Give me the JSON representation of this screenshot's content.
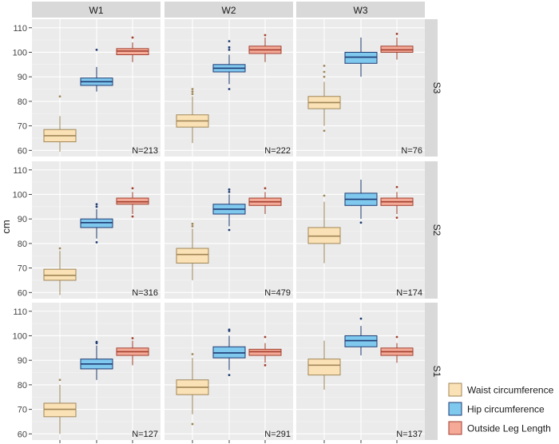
{
  "chart_data": {
    "type": "boxplot",
    "ylabel": "cm",
    "yticks": [
      60,
      70,
      80,
      90,
      100,
      110
    ],
    "ylim": [
      57.5,
      113.5
    ],
    "columns": [
      "W1",
      "W2",
      "W3"
    ],
    "rows": [
      "S3",
      "S2",
      "S1"
    ],
    "legend": {
      "placement": "bottom-right",
      "entries": [
        {
          "label": "Waist circumference",
          "fill": "#fbe2b6",
          "stroke": "#a08657"
        },
        {
          "label": "Hip circumference",
          "fill": "#7fc8ee",
          "stroke": "#1f3b73"
        },
        {
          "label": "Outside Leg Length",
          "fill": "#f4aa97",
          "stroke": "#a23f30"
        }
      ]
    },
    "panels": [
      {
        "row": "S3",
        "col": "W1",
        "n_label": "N=213",
        "boxes": [
          {
            "series": "Waist circumference",
            "whisker_low": 59.5,
            "q1": 63.5,
            "median": 66,
            "q3": 68.5,
            "whisker_high": 74,
            "outliers": [
              82
            ]
          },
          {
            "series": "Hip circumference",
            "whisker_low": 84,
            "q1": 86.5,
            "median": 88,
            "q3": 89.5,
            "whisker_high": 94,
            "outliers": [
              101
            ]
          },
          {
            "series": "Outside Leg Length",
            "whisker_low": 96,
            "q1": 99,
            "median": 100.5,
            "q3": 101.5,
            "whisker_high": 104,
            "outliers": [
              106
            ]
          }
        ]
      },
      {
        "row": "S3",
        "col": "W2",
        "n_label": "N=222",
        "boxes": [
          {
            "series": "Waist circumference",
            "whisker_low": 63,
            "q1": 69.5,
            "median": 72,
            "q3": 74.5,
            "whisker_high": 82,
            "outliers": [
              83,
              84,
              85
            ]
          },
          {
            "series": "Hip circumference",
            "whisker_low": 87,
            "q1": 92,
            "median": 93.5,
            "q3": 95,
            "whisker_high": 99,
            "outliers": [
              85,
              101,
              102,
              104.5
            ]
          },
          {
            "series": "Outside Leg Length",
            "whisker_low": 96,
            "q1": 99.5,
            "median": 101,
            "q3": 102.5,
            "whisker_high": 106,
            "outliers": [
              107
            ]
          }
        ]
      },
      {
        "row": "S3",
        "col": "W3",
        "n_label": "N=76",
        "boxes": [
          {
            "series": "Waist circumference",
            "whisker_low": 70,
            "q1": 77,
            "median": 79.5,
            "q3": 82,
            "whisker_high": 88,
            "outliers": [
              68,
              90,
              92,
              94.5
            ]
          },
          {
            "series": "Hip circumference",
            "whisker_low": 90,
            "q1": 95.5,
            "median": 98,
            "q3": 100,
            "whisker_high": 106,
            "outliers": []
          },
          {
            "series": "Outside Leg Length",
            "whisker_low": 97,
            "q1": 100,
            "median": 101,
            "q3": 102.5,
            "whisker_high": 106,
            "outliers": [
              107.5
            ]
          }
        ]
      },
      {
        "row": "S2",
        "col": "W1",
        "n_label": "N=316",
        "boxes": [
          {
            "series": "Waist circumference",
            "whisker_low": 59,
            "q1": 65,
            "median": 67,
            "q3": 69.5,
            "whisker_high": 77,
            "outliers": [
              78
            ]
          },
          {
            "series": "Hip circumference",
            "whisker_low": 82,
            "q1": 86.5,
            "median": 88.5,
            "q3": 90,
            "whisker_high": 94,
            "outliers": [
              80.5,
              95,
              96
            ]
          },
          {
            "series": "Outside Leg Length",
            "whisker_low": 92,
            "q1": 96,
            "median": 97,
            "q3": 98.5,
            "whisker_high": 101,
            "outliers": [
              91,
              102.5
            ]
          }
        ]
      },
      {
        "row": "S2",
        "col": "W2",
        "n_label": "N=479",
        "boxes": [
          {
            "series": "Waist circumference",
            "whisker_low": 65,
            "q1": 72,
            "median": 75.5,
            "q3": 78,
            "whisker_high": 86,
            "outliers": [
              87,
              88
            ]
          },
          {
            "series": "Hip circumference",
            "whisker_low": 87,
            "q1": 92,
            "median": 94,
            "q3": 96,
            "whisker_high": 100,
            "outliers": [
              85.5,
              101,
              102
            ]
          },
          {
            "series": "Outside Leg Length",
            "whisker_low": 92,
            "q1": 95.5,
            "median": 97,
            "q3": 98.5,
            "whisker_high": 101,
            "outliers": [
              102.5
            ]
          }
        ]
      },
      {
        "row": "S2",
        "col": "W3",
        "n_label": "N=174",
        "boxes": [
          {
            "series": "Waist circumference",
            "whisker_low": 72,
            "q1": 80,
            "median": 83,
            "q3": 86.5,
            "whisker_high": 97,
            "outliers": [
              99.5
            ]
          },
          {
            "series": "Hip circumference",
            "whisker_low": 90,
            "q1": 95.5,
            "median": 98,
            "q3": 100.5,
            "whisker_high": 106,
            "outliers": [
              88.5
            ]
          },
          {
            "series": "Outside Leg Length",
            "whisker_low": 92,
            "q1": 95.5,
            "median": 97,
            "q3": 98.5,
            "whisker_high": 101,
            "outliers": [
              90.5,
              103
            ]
          }
        ]
      },
      {
        "row": "S1",
        "col": "W1",
        "n_label": "N=127",
        "boxes": [
          {
            "series": "Waist circumference",
            "whisker_low": 60,
            "q1": 67,
            "median": 70,
            "q3": 72.5,
            "whisker_high": 80,
            "outliers": [
              82
            ]
          },
          {
            "series": "Hip circumference",
            "whisker_low": 82,
            "q1": 86.5,
            "median": 88.5,
            "q3": 90.5,
            "whisker_high": 96,
            "outliers": [
              97,
              97.5
            ]
          },
          {
            "series": "Outside Leg Length",
            "whisker_low": 88,
            "q1": 92,
            "median": 93.5,
            "q3": 95,
            "whisker_high": 98,
            "outliers": [
              99
            ]
          }
        ]
      },
      {
        "row": "S1",
        "col": "W2",
        "n_label": "N=291",
        "boxes": [
          {
            "series": "Waist circumference",
            "whisker_low": 68,
            "q1": 76,
            "median": 79,
            "q3": 82,
            "whisker_high": 91,
            "outliers": [
              64,
              92.5
            ]
          },
          {
            "series": "Hip circumference",
            "whisker_low": 86,
            "q1": 91,
            "median": 93,
            "q3": 95.5,
            "whisker_high": 100,
            "outliers": [
              84,
              102,
              102.5
            ]
          },
          {
            "series": "Outside Leg Length",
            "whisker_low": 89,
            "q1": 92,
            "median": 93.5,
            "q3": 94.5,
            "whisker_high": 97,
            "outliers": [
              88,
              99.5
            ]
          }
        ]
      },
      {
        "row": "S1",
        "col": "W3",
        "n_label": "N=137",
        "boxes": [
          {
            "series": "Waist circumference",
            "whisker_low": 78,
            "q1": 84,
            "median": 88,
            "q3": 90.5,
            "whisker_high": 98,
            "outliers": []
          },
          {
            "series": "Hip circumference",
            "whisker_low": 92,
            "q1": 95.5,
            "median": 98,
            "q3": 100,
            "whisker_high": 104,
            "outliers": [
              107
            ]
          },
          {
            "series": "Outside Leg Length",
            "whisker_low": 89,
            "q1": 92,
            "median": 93.5,
            "q3": 95,
            "whisker_high": 97,
            "outliers": [
              99.5
            ]
          }
        ]
      }
    ]
  }
}
